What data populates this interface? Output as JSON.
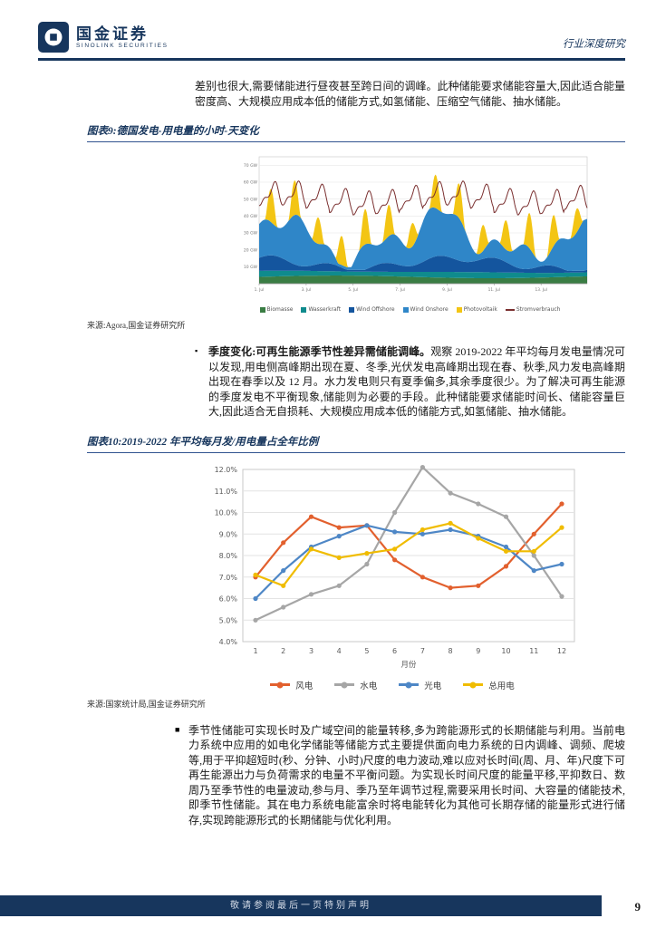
{
  "header": {
    "brand": "国金证券",
    "brand_sub": "SINOLINK SECURITIES",
    "doc_type": "行业深度研究",
    "logo_icon": "sinolink-coin-logo",
    "accent_color": "#17365d"
  },
  "intro_paragraph": "差别也很大,需要储能进行昼夜甚至跨日间的调峰。此种储能要求储能容量大,因此适合能量密度高、大规模应用成本低的储能方式,如氢储能、压缩空气储能、抽水储能。",
  "figure9": {
    "caption": "图表9:德国发电-用电量的小时-天变化",
    "source": "来源:Agora,国金证券研究所"
  },
  "bullet1": {
    "marker": "▪",
    "lead": "季度变化:可再生能源季节性差异需储能调峰。",
    "text": "观察 2019-2022 年平均每月发电量情况可以发现,用电侧高峰期出现在夏、冬季,光伏发电高峰期出现在春、秋季,风力发电高峰期出现在春季以及 12 月。水力发电则只有夏季偏多,其余季度很少。为了解决可再生能源的季度发电不平衡现象,储能则为必要的手段。此种储能要求储能时间长、储能容量巨大,因此适合无自损耗、大规模应用成本低的储能方式,如氢储能、抽水储能。"
  },
  "figure10": {
    "caption": "图表10:2019-2022 年平均每月发/用电量占全年比例",
    "source": "来源:国家统计局,国金证券研究所"
  },
  "paragraph2": {
    "marker": "■",
    "text": "季节性储能可实现长时及广域空间的能量转移,多为跨能源形式的长期储能与利用。当前电力系统中应用的如电化学储能等储能方式主要提供面向电力系统的日内调峰、调频、爬坡等,用于平抑超短时(秒、分钟、小时)尺度的电力波动,难以应对长时间(周、月、年)尺度下可再生能源出力与负荷需求的电量不平衡问题。为实现长时间尺度的能量平移,平抑数日、数周乃至季节性的电量波动,参与月、季乃至年调节过程,需要采用长时间、大容量的储能技术,即季节性储能。其在电力系统电能富余时将电能转化为其他可长期存储的能量形式进行储存,实现跨能源形式的长期储能与优化利用。"
  },
  "footer": {
    "disclaimer": "敬请参阅最后一页特别声明",
    "page_number": "9"
  },
  "chart_data": [
    {
      "type": "area",
      "title": "德国发电-用电量的小时-天变化",
      "ylabel": "GW",
      "ylim": [
        0,
        75
      ],
      "y_ticks": [
        10,
        20,
        30,
        40,
        50,
        60,
        70
      ],
      "days": 14,
      "x_tick_labels": [
        "1. Jul",
        "3. Jul",
        "5. Jul",
        "7. Jul",
        "9. Jul",
        "11. Jul",
        "13. Jul"
      ],
      "layers": [
        {
          "name": "Biomasse",
          "color": "#3a7d44"
        },
        {
          "name": "Wasserkraft",
          "color": "#0f8b8d"
        },
        {
          "name": "Wind Offshore",
          "color": "#14559e"
        },
        {
          "name": "Wind Onshore",
          "color": "#2f86c8"
        },
        {
          "name": "Photovoltaik",
          "color": "#f3c514"
        }
      ],
      "line_series": {
        "name": "Stromverbrauch",
        "color": "#7a2f2f"
      },
      "legend_position": "bottom",
      "grid": true
    },
    {
      "type": "line",
      "title": "2019-2022 年平均每月发/用电量占全年比例",
      "categories": [
        1,
        2,
        3,
        4,
        5,
        6,
        7,
        8,
        9,
        10,
        11,
        12
      ],
      "xlabel": "月份",
      "ylim": [
        4,
        12
      ],
      "y_tick_format": "percent_1dp",
      "series": [
        {
          "name": "风电",
          "color": "#e2602e",
          "values": [
            7.0,
            8.6,
            9.8,
            9.3,
            9.4,
            7.8,
            7.0,
            6.5,
            6.6,
            7.5,
            9.0,
            10.4
          ]
        },
        {
          "name": "水电",
          "color": "#a6a6a6",
          "values": [
            5.0,
            5.6,
            6.2,
            6.6,
            7.6,
            10.0,
            12.1,
            10.9,
            10.4,
            9.8,
            8.0,
            6.1
          ]
        },
        {
          "name": "光电",
          "color": "#4e87c6",
          "values": [
            6.0,
            7.3,
            8.4,
            8.9,
            9.4,
            9.1,
            9.0,
            9.2,
            8.9,
            8.4,
            7.3,
            7.6
          ]
        },
        {
          "name": "总用电",
          "color": "#f0bc00",
          "values": [
            7.1,
            6.6,
            8.3,
            7.9,
            8.1,
            8.3,
            9.2,
            9.5,
            8.8,
            8.2,
            8.2,
            9.3
          ]
        }
      ],
      "legend_position": "bottom",
      "grid": true
    }
  ]
}
